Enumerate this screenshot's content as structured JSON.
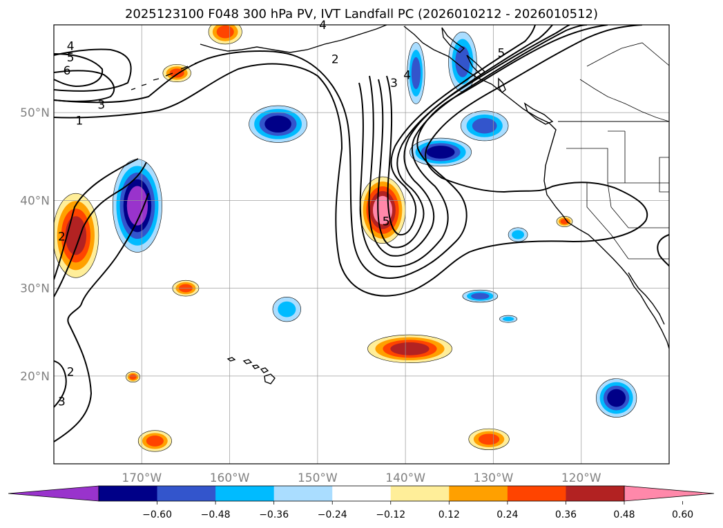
{
  "chart_data": {
    "type": "heatmap",
    "title": "2025123100 F048 300 hPa PV, IVT Landfall PC (2026010212 - 2026010512)",
    "xlabel": "",
    "ylabel": "",
    "xlim": [
      -180,
      -110
    ],
    "ylim": [
      10,
      60
    ],
    "grid": true,
    "lon_ticks": [
      {
        "value": -170,
        "label": "170°W"
      },
      {
        "value": -160,
        "label": "160°W"
      },
      {
        "value": -150,
        "label": "150°W"
      },
      {
        "value": -140,
        "label": "140°W"
      },
      {
        "value": -130,
        "label": "130°W"
      },
      {
        "value": -120,
        "label": "120°W"
      }
    ],
    "lat_ticks": [
      {
        "value": 20,
        "label": "20°N"
      },
      {
        "value": 30,
        "label": "30°N"
      },
      {
        "value": 40,
        "label": "40°N"
      },
      {
        "value": 50,
        "label": "50°N"
      }
    ],
    "colorbar": {
      "levels": [
        -0.72,
        -0.6,
        -0.48,
        -0.36,
        -0.24,
        -0.12,
        0.12,
        0.24,
        0.36,
        0.48,
        0.6,
        0.72
      ],
      "tick_values": [
        -0.6,
        -0.48,
        -0.36,
        -0.24,
        -0.12,
        0.12,
        0.24,
        0.36,
        0.48,
        0.6
      ],
      "tick_labels": [
        "−0.60",
        "−0.48",
        "−0.36",
        "−0.24",
        "−0.12",
        "0.12",
        "0.24",
        "0.36",
        "0.48",
        "0.60"
      ],
      "colors": [
        "#9933cc",
        "#000088",
        "#3355cc",
        "#00bbff",
        "#aaddff",
        "#ffffff",
        "#ffee99",
        "#ffa000",
        "#ff4400",
        "#b22222",
        "#ff88aa"
      ],
      "extend": "both"
    },
    "anomalies": [
      {
        "lon": -154.5,
        "lat": 48.7,
        "value": -0.6,
        "rlon": 3.3,
        "rlat": 2.1
      },
      {
        "lon": -170.5,
        "lat": 39.4,
        "value": -0.65,
        "rlon": 2.8,
        "rlat": 5.3
      },
      {
        "lon": -177.5,
        "lat": 36.0,
        "value": 0.5,
        "rlon": 2.6,
        "rlat": 4.8
      },
      {
        "lon": -142.6,
        "lat": 38.9,
        "value": 0.62,
        "rlon": 2.6,
        "rlat": 3.8
      },
      {
        "lon": -139.5,
        "lat": 23.1,
        "value": 0.52,
        "rlon": 4.8,
        "rlat": 1.6
      },
      {
        "lon": -136.0,
        "lat": 45.5,
        "value": -0.5,
        "rlon": 3.5,
        "rlat": 1.6
      },
      {
        "lon": -131.0,
        "lat": 48.5,
        "value": -0.45,
        "rlon": 2.7,
        "rlat": 1.7
      },
      {
        "lon": -138.8,
        "lat": 54.5,
        "value": -0.4,
        "rlon": 1.0,
        "rlat": 3.5
      },
      {
        "lon": -133.5,
        "lat": 55.8,
        "value": -0.42,
        "rlon": 1.6,
        "rlat": 3.4
      },
      {
        "lon": -116.0,
        "lat": 17.5,
        "value": -0.5,
        "rlon": 2.3,
        "rlat": 2.2
      },
      {
        "lon": -130.5,
        "lat": 12.8,
        "value": 0.4,
        "rlon": 2.3,
        "rlat": 1.2
      },
      {
        "lon": -168.5,
        "lat": 12.6,
        "value": 0.4,
        "rlon": 1.9,
        "rlat": 1.2
      },
      {
        "lon": -165.0,
        "lat": 30.0,
        "value": 0.4,
        "rlon": 1.5,
        "rlat": 0.9
      },
      {
        "lon": -153.5,
        "lat": 27.6,
        "value": -0.36,
        "rlon": 1.6,
        "rlat": 1.4
      },
      {
        "lon": -131.5,
        "lat": 29.1,
        "value": -0.4,
        "rlon": 2.0,
        "rlat": 0.7
      },
      {
        "lon": -127.2,
        "lat": 36.1,
        "value": -0.36,
        "rlon": 1.1,
        "rlat": 0.8
      },
      {
        "lon": -160.5,
        "lat": 59.2,
        "value": 0.4,
        "rlon": 1.9,
        "rlat": 1.4
      },
      {
        "lon": -166.0,
        "lat": 54.5,
        "value": 0.36,
        "rlon": 1.6,
        "rlat": 1.0
      },
      {
        "lon": -171.0,
        "lat": 19.9,
        "value": 0.36,
        "rlon": 0.8,
        "rlat": 0.6
      },
      {
        "lon": -121.9,
        "lat": 37.6,
        "value": 0.4,
        "rlon": 0.9,
        "rlat": 0.6
      },
      {
        "lon": -128.3,
        "lat": 26.5,
        "value": -0.3,
        "rlon": 1.0,
        "rlat": 0.4
      }
    ],
    "ivt_contour_labels": [
      {
        "text": "1",
        "lon": -177.1,
        "lat": 48.8
      },
      {
        "text": "2",
        "lon": -148.0,
        "lat": 55.8
      },
      {
        "text": "2",
        "lon": -178.1,
        "lat": 20.2
      },
      {
        "text": "2",
        "lon": -179.1,
        "lat": 35.6
      },
      {
        "text": "3",
        "lon": -174.6,
        "lat": 50.6
      },
      {
        "text": "3",
        "lon": -141.3,
        "lat": 53.1
      },
      {
        "text": "3",
        "lon": -179.1,
        "lat": 16.8
      },
      {
        "text": "4",
        "lon": -178.1,
        "lat": 57.3
      },
      {
        "text": "4",
        "lon": -149.4,
        "lat": 59.7
      },
      {
        "text": "4",
        "lon": -139.8,
        "lat": 54.0
      },
      {
        "text": "5",
        "lon": -178.1,
        "lat": 56.0
      },
      {
        "text": "5",
        "lon": -129.1,
        "lat": 56.5
      },
      {
        "text": "5",
        "lon": -142.2,
        "lat": 37.3
      },
      {
        "text": "6",
        "lon": -178.5,
        "lat": 54.5
      }
    ]
  }
}
